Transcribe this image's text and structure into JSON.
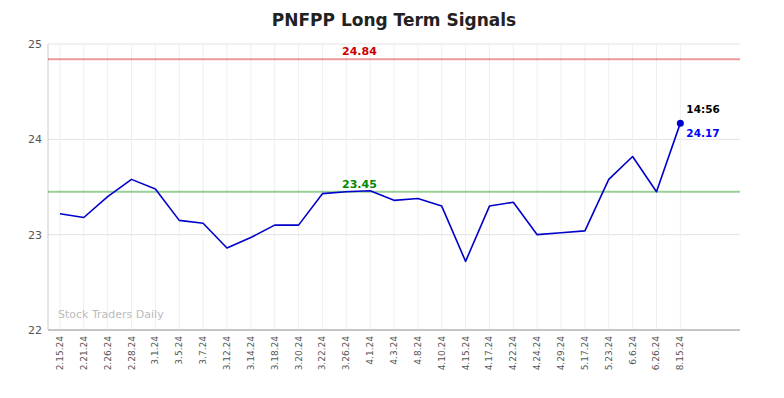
{
  "chart_data": {
    "type": "line",
    "title": "PNFPP Long Term Signals",
    "categories": [
      "2.15.24",
      "2.21.24",
      "2.26.24",
      "2.28.24",
      "3.1.24",
      "3.5.24",
      "3.7.24",
      "3.12.24",
      "3.14.24",
      "3.18.24",
      "3.20.24",
      "3.22.24",
      "3.26.24",
      "4.1.24",
      "4.3.24",
      "4.8.24",
      "4.10.24",
      "4.15.24",
      "4.17.24",
      "4.22.24",
      "4.24.24",
      "4.29.24",
      "5.17.24",
      "5.23.24",
      "6.6.24",
      "6.26.24",
      "8.15.24"
    ],
    "values": [
      23.22,
      23.18,
      23.4,
      23.58,
      23.48,
      23.15,
      23.12,
      22.86,
      22.97,
      23.1,
      23.1,
      23.43,
      23.45,
      23.46,
      23.36,
      23.38,
      23.3,
      22.72,
      23.3,
      23.34,
      23.0,
      23.02,
      23.04,
      23.58,
      23.82,
      23.45,
      24.17
    ],
    "color": "#0000cc",
    "ylim": [
      22,
      25
    ],
    "yticks": [
      22,
      23,
      24,
      25
    ],
    "grid": true,
    "lines": [
      {
        "value": 24.84,
        "label": "24.84",
        "color": "#cc0000"
      },
      {
        "value": 23.45,
        "label": "23.45",
        "color": "#008800"
      }
    ],
    "annotations": [
      {
        "kind": "time",
        "text": "14:56"
      },
      {
        "kind": "price",
        "text": "24.17",
        "value": 24.17,
        "color": "#0000ff"
      },
      {
        "kind": "watermark",
        "text": "Stock Traders Daily"
      }
    ]
  }
}
